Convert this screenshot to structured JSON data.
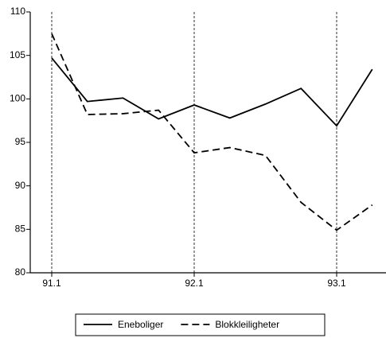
{
  "chart_data": {
    "type": "line",
    "categories": [
      "91.1",
      null,
      null,
      null,
      "92.1",
      null,
      null,
      null,
      "93.1",
      null
    ],
    "series": [
      {
        "name": "Eneboliger",
        "color": "#000000",
        "style": "solid",
        "values": [
          104.7,
          99.7,
          100.1,
          97.7,
          99.3,
          97.8,
          99.4,
          101.2,
          96.9,
          103.4
        ]
      },
      {
        "name": "Blokkleiligheter",
        "color": "#000000",
        "style": "dashed",
        "values": [
          107.5,
          98.2,
          98.3,
          98.7,
          93.8,
          94.4,
          93.5,
          88.1,
          84.9,
          87.8
        ]
      }
    ],
    "ylim": [
      80,
      110
    ],
    "yticks": [
      80,
      85,
      90,
      95,
      100,
      105,
      110
    ],
    "grid": true,
    "legend": "bottom"
  }
}
